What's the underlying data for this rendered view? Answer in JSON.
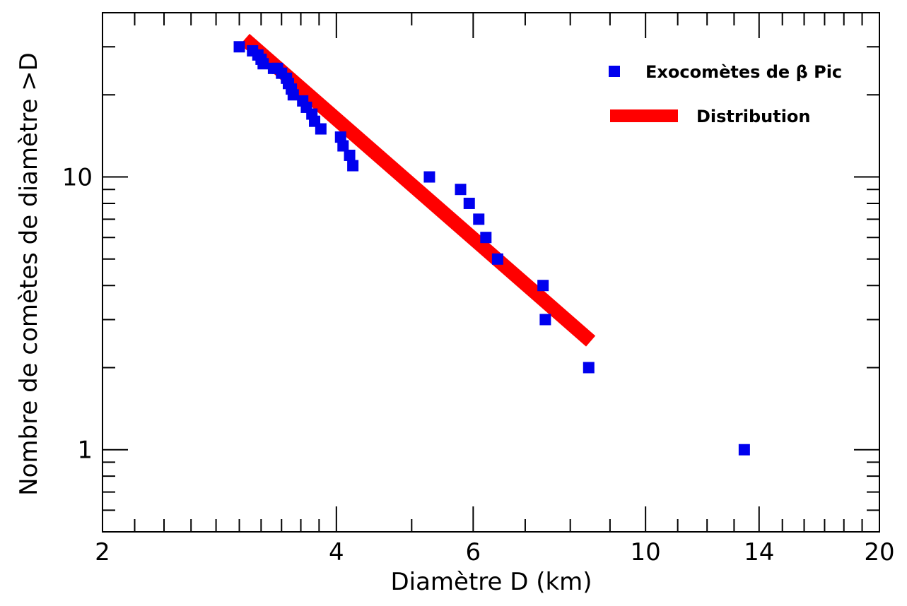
{
  "chart_data": {
    "type": "scatter",
    "xlabel": "Diamètre D (km)",
    "ylabel": "Nombre de comètes de diamètre >D",
    "xscale": "log",
    "yscale": "log",
    "xlim": [
      2,
      20
    ],
    "ylim": [
      0.5,
      40
    ],
    "x_tick_labels": [
      {
        "value": 2,
        "label": "2"
      },
      {
        "value": 4,
        "label": "4"
      },
      {
        "value": 6,
        "label": "6"
      },
      {
        "value": 10,
        "label": "10"
      },
      {
        "value": 14,
        "label": "14"
      },
      {
        "value": 20,
        "label": "20"
      }
    ],
    "y_tick_labels": [
      {
        "value": 1,
        "label": "1"
      },
      {
        "value": 10,
        "label": "10"
      }
    ],
    "legend_position": "top-right",
    "series": [
      {
        "name": "Exocomètes de β Pic",
        "kind": "scatter",
        "marker": "square",
        "color": "#0000ee",
        "points": [
          [
            3.0,
            30
          ],
          [
            3.12,
            29
          ],
          [
            3.17,
            28
          ],
          [
            3.2,
            27
          ],
          [
            3.22,
            26
          ],
          [
            3.32,
            25
          ],
          [
            3.36,
            25
          ],
          [
            3.4,
            24
          ],
          [
            3.45,
            23
          ],
          [
            3.47,
            22
          ],
          [
            3.5,
            21
          ],
          [
            3.52,
            20
          ],
          [
            3.62,
            19
          ],
          [
            3.66,
            18
          ],
          [
            3.72,
            17
          ],
          [
            3.75,
            16
          ],
          [
            3.82,
            15
          ],
          [
            4.05,
            14
          ],
          [
            4.08,
            13
          ],
          [
            4.16,
            12
          ],
          [
            4.2,
            11
          ],
          [
            5.27,
            10
          ],
          [
            5.78,
            9
          ],
          [
            5.93,
            8
          ],
          [
            6.1,
            7
          ],
          [
            6.23,
            6
          ],
          [
            6.45,
            5
          ],
          [
            7.38,
            4
          ],
          [
            7.43,
            3
          ],
          [
            8.45,
            2
          ],
          [
            13.4,
            1
          ]
        ]
      },
      {
        "name": "Distribution",
        "kind": "line",
        "color": "#ff0000",
        "points": [
          [
            3.05,
            32
          ],
          [
            8.5,
            2.5
          ]
        ]
      }
    ]
  }
}
